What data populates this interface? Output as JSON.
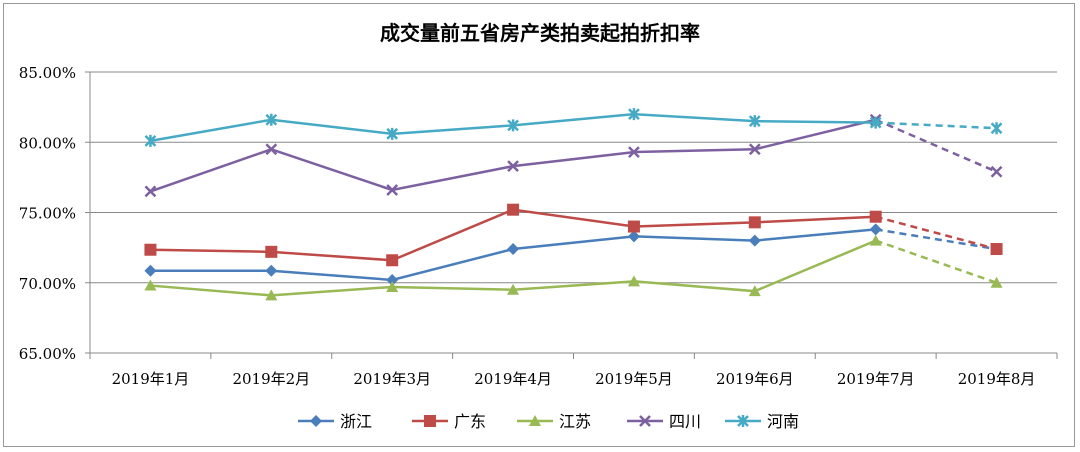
{
  "chart_data": {
    "type": "line",
    "title": "成交量前五省房产类拍卖起拍折扣率",
    "categories": [
      "2019年1月",
      "2019年2月",
      "2019年3月",
      "2019年4月",
      "2019年5月",
      "2019年6月",
      "2019年7月",
      "2019年8月"
    ],
    "ylim": [
      65,
      85
    ],
    "yticks": [
      "65.00%",
      "70.00%",
      "75.00%",
      "80.00%",
      "85.00%"
    ],
    "ytick_values": [
      65,
      70,
      75,
      80,
      85
    ],
    "grid": true,
    "legend_position": "bottom",
    "dashed_last_segment": true,
    "series": [
      {
        "name": "浙江",
        "color": "#4a7ebb",
        "marker": "diamond",
        "values": [
          70.85,
          70.85,
          70.2,
          72.4,
          73.3,
          73.0,
          73.8,
          72.4
        ]
      },
      {
        "name": "广东",
        "color": "#be4b48",
        "marker": "square",
        "values": [
          72.35,
          72.2,
          71.6,
          75.2,
          74.0,
          74.3,
          74.7,
          72.4
        ]
      },
      {
        "name": "江苏",
        "color": "#98b954",
        "marker": "triangle",
        "values": [
          69.8,
          69.1,
          69.7,
          69.5,
          70.1,
          69.4,
          73.0,
          70.0
        ]
      },
      {
        "name": "四川",
        "color": "#7d60a0",
        "marker": "x",
        "values": [
          76.5,
          79.5,
          76.6,
          78.3,
          79.3,
          79.5,
          81.6,
          77.9
        ]
      },
      {
        "name": "河南",
        "color": "#46aac5",
        "marker": "star",
        "values": [
          80.1,
          81.6,
          80.6,
          81.2,
          82.0,
          81.5,
          81.4,
          81.0
        ]
      }
    ]
  }
}
